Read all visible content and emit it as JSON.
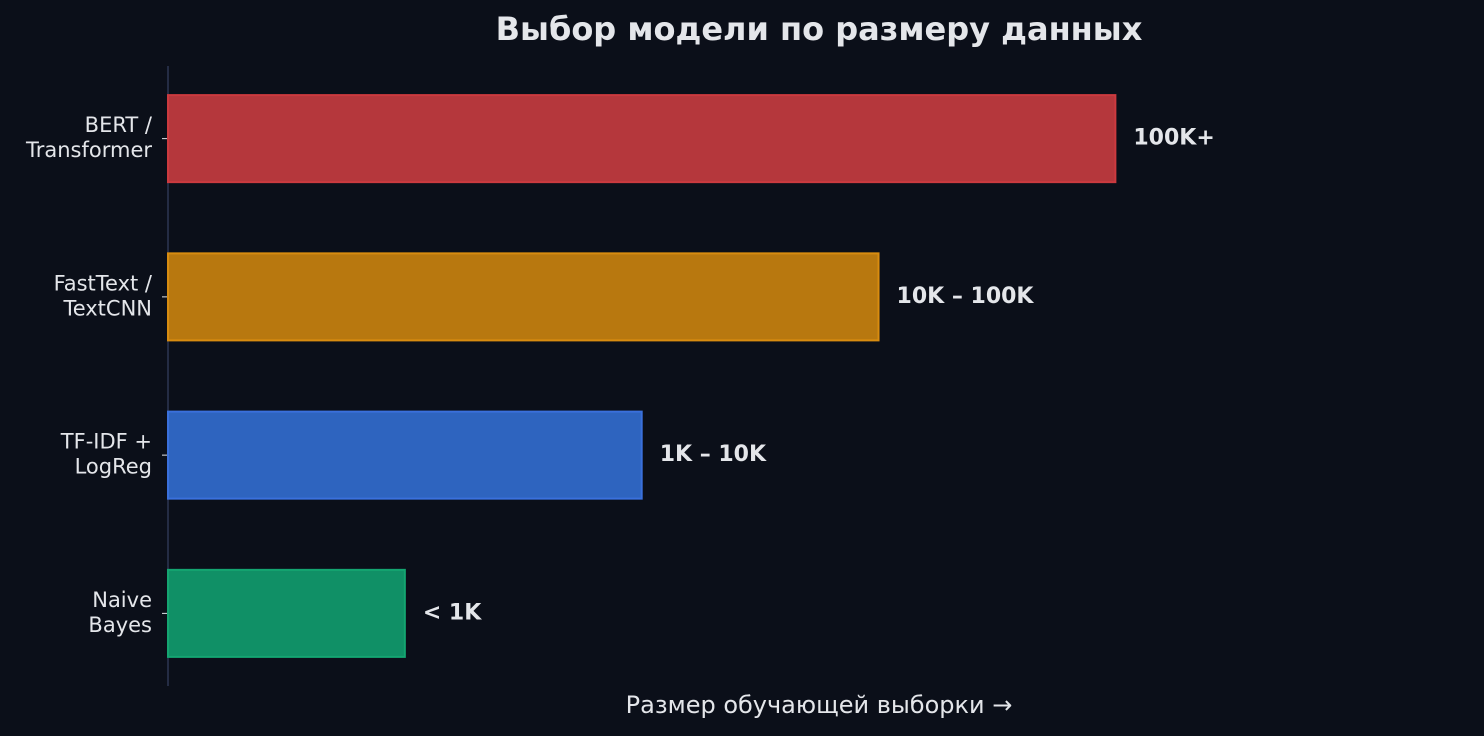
{
  "chart_data": {
    "type": "barh",
    "title": "Выбор модели по размеру данных",
    "x_label": "Размер обучающей выборки →",
    "categories": [
      [
        "BERT /",
        "Transformer"
      ],
      [
        "FastText /",
        "TextCNN"
      ],
      [
        "TF-IDF +",
        "LogReg"
      ],
      [
        "Naive",
        "Bayes"
      ]
    ],
    "values": [
      4,
      3,
      2,
      1
    ],
    "annotations": [
      "100K+",
      "10K – 100K",
      "1K – 10K",
      "< 1K"
    ],
    "colors": [
      "#b5373c",
      "#b8780f",
      "#2e64bf",
      "#109066"
    ],
    "edge_colors": [
      "#cc3a3f",
      "#d88c10",
      "#3a70dc",
      "#14a571"
    ],
    "xlim": [
      0,
      5.2
    ]
  }
}
